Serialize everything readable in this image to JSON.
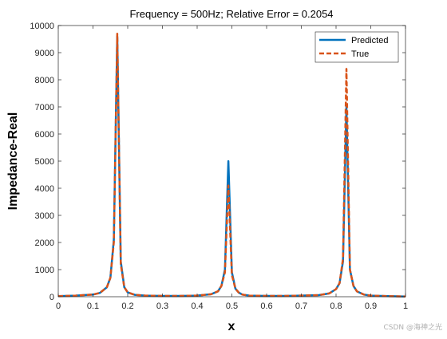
{
  "chart_data": {
    "type": "line",
    "title": "Frequency = 500Hz; Relative Error = 0.2054",
    "xlabel": "x",
    "ylabel": "Impedance-Real",
    "xlim": [
      0,
      1
    ],
    "ylim": [
      0,
      10000
    ],
    "xticks": [
      "0",
      "0.1",
      "0.2",
      "0.3",
      "0.4",
      "0.5",
      "0.6",
      "0.7",
      "0.8",
      "0.9",
      "1"
    ],
    "yticks": [
      "0",
      "1000",
      "2000",
      "3000",
      "4000",
      "5000",
      "6000",
      "7000",
      "8000",
      "9000",
      "10000"
    ],
    "grid": false,
    "legend_position": "top-right",
    "series": [
      {
        "name": "Predicted",
        "color": "#0072BD",
        "style": "solid",
        "x": [
          0,
          0.05,
          0.1,
          0.12,
          0.14,
          0.15,
          0.16,
          0.17,
          0.18,
          0.19,
          0.2,
          0.22,
          0.25,
          0.3,
          0.35,
          0.4,
          0.44,
          0.46,
          0.47,
          0.48,
          0.49,
          0.5,
          0.51,
          0.52,
          0.53,
          0.55,
          0.6,
          0.65,
          0.7,
          0.75,
          0.78,
          0.8,
          0.81,
          0.82,
          0.83,
          0.84,
          0.85,
          0.86,
          0.88,
          0.9,
          0.95,
          1
        ],
        "y": [
          20,
          40,
          80,
          140,
          350,
          700,
          2100,
          9600,
          1300,
          350,
          160,
          70,
          40,
          30,
          30,
          40,
          90,
          200,
          400,
          1000,
          5000,
          900,
          300,
          150,
          80,
          40,
          30,
          30,
          40,
          60,
          120,
          280,
          500,
          1300,
          7000,
          1000,
          400,
          200,
          80,
          40,
          20,
          10
        ]
      },
      {
        "name": "True",
        "color": "#D95319",
        "style": "dashed",
        "x": [
          0,
          0.05,
          0.1,
          0.12,
          0.14,
          0.15,
          0.16,
          0.17,
          0.18,
          0.19,
          0.2,
          0.22,
          0.25,
          0.3,
          0.35,
          0.4,
          0.44,
          0.46,
          0.47,
          0.48,
          0.49,
          0.5,
          0.51,
          0.52,
          0.53,
          0.55,
          0.6,
          0.65,
          0.7,
          0.75,
          0.78,
          0.8,
          0.81,
          0.82,
          0.83,
          0.84,
          0.85,
          0.86,
          0.88,
          0.9,
          0.95,
          1
        ],
        "y": [
          20,
          40,
          80,
          140,
          350,
          700,
          2000,
          9700,
          1200,
          350,
          160,
          70,
          40,
          30,
          30,
          40,
          90,
          200,
          400,
          900,
          4100,
          800,
          300,
          150,
          80,
          40,
          30,
          30,
          40,
          60,
          120,
          280,
          500,
          1400,
          8400,
          1000,
          400,
          200,
          80,
          40,
          20,
          10
        ]
      }
    ]
  },
  "watermark": "CSDN @海神之光"
}
